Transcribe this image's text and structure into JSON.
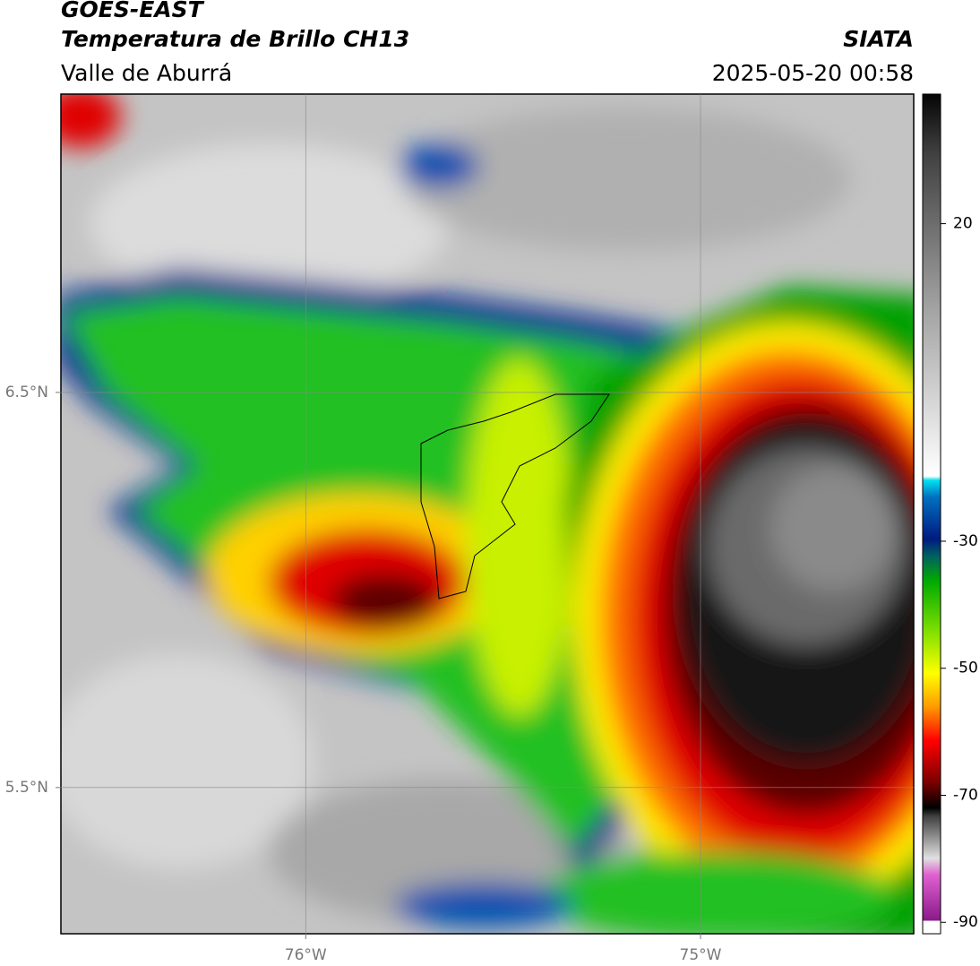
{
  "header": {
    "satellite": "GOES-EAST",
    "product": "Temperatura de Brillo CH13",
    "region": "Valle de Aburrá",
    "source": "SIATA",
    "datetime": "2025-05-20 00:58"
  },
  "map": {
    "xlim": [
      -76.62,
      -74.46
    ],
    "ylim": [
      5.13,
      7.255
    ],
    "xticks": [
      {
        "value": -76,
        "label": "76°W"
      },
      {
        "value": -75,
        "label": "75°W"
      }
    ],
    "yticks": [
      {
        "value": 6.5,
        "label": "6.5°N"
      },
      {
        "value": 5.5,
        "label": "5.5°N"
      }
    ],
    "grid": true
  },
  "colorbar": {
    "lim": [
      -91.8,
      40.4
    ],
    "ticks": [
      20,
      -30,
      -50,
      -70,
      -90
    ]
  }
}
